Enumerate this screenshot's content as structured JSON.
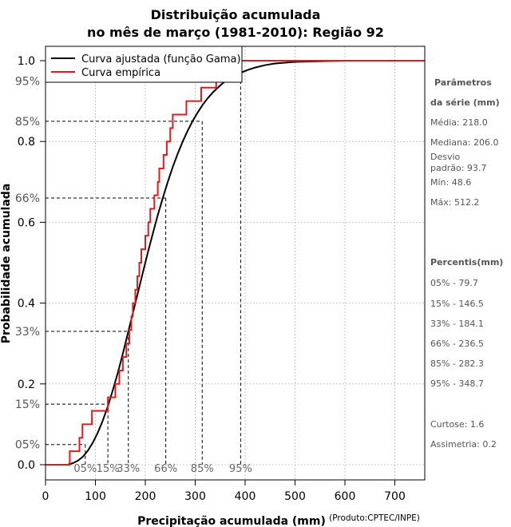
{
  "chart_data": {
    "type": "line",
    "title_line1": "Distribuição acumulada",
    "title_line2": "no mês de março (1981-2010): Região 92",
    "xlabel": "Precipitação acumulada (mm)",
    "xlabel_note": "(Produto:CPTEC/INPE)",
    "ylabel": "Probabilidade acumulada",
    "xlim": [
      0,
      760
    ],
    "ylim": [
      0,
      1.0
    ],
    "x_ticks": [
      0,
      100,
      200,
      300,
      400,
      500,
      600,
      700
    ],
    "x_tick_labels": [
      "0",
      "100",
      "200",
      "300",
      "400",
      "500",
      "600",
      "700"
    ],
    "y_ticks": [
      0.0,
      0.2,
      0.4,
      0.6,
      0.8,
      1.0
    ],
    "y_tick_labels": [
      "0.0",
      "0.2",
      "0.4",
      "0.6",
      "0.8",
      "1.0"
    ],
    "grid": true,
    "legend_position": "top-left",
    "legend": [
      {
        "label": "Curva ajustada (função Gama)",
        "color": "#000000"
      },
      {
        "label": "Curva empírica",
        "color": "#e31a1c"
      }
    ],
    "series": [
      {
        "name": "Curva ajustada (função Gama)",
        "color": "#000000",
        "x": [
          44,
          55,
          65,
          75,
          85,
          95,
          105,
          115,
          125,
          135,
          145,
          155,
          165,
          175,
          185,
          195,
          205,
          215,
          225,
          235,
          245,
          255,
          265,
          275,
          285,
          295,
          305,
          315,
          325,
          335,
          345,
          355,
          365,
          375,
          385,
          395,
          405,
          420,
          440,
          460,
          480,
          500,
          530,
          560,
          600,
          640,
          675
        ],
        "y": [
          0.0,
          0.004,
          0.01,
          0.02,
          0.035,
          0.055,
          0.08,
          0.11,
          0.145,
          0.185,
          0.228,
          0.275,
          0.325,
          0.375,
          0.425,
          0.475,
          0.525,
          0.572,
          0.618,
          0.66,
          0.7,
          0.737,
          0.77,
          0.8,
          0.827,
          0.851,
          0.872,
          0.891,
          0.907,
          0.921,
          0.933,
          0.944,
          0.953,
          0.96,
          0.967,
          0.972,
          0.977,
          0.983,
          0.989,
          0.993,
          0.995,
          0.997,
          0.998,
          0.999,
          1.0,
          1.0,
          1.0
        ]
      },
      {
        "name": "Curva empírica",
        "color": "#e31a1c",
        "step_x": [
          0,
          48.6,
          68,
          74,
          93,
          125,
          140,
          148,
          155,
          162,
          168,
          172,
          175,
          180,
          184.1,
          188,
          192,
          200,
          206,
          210,
          218,
          225,
          228,
          236.5,
          243,
          250,
          255,
          258,
          268,
          275,
          282.3,
          288,
          300,
          312,
          325,
          342,
          348.7,
          352,
          372,
          512.2,
          760
        ],
        "step_y": [
          0,
          0.0333,
          0.0667,
          0.1,
          0.1333,
          0.1667,
          0.2,
          0.2333,
          0.2667,
          0.3,
          0.3333,
          0.3667,
          0.4,
          0.4333,
          0.4667,
          0.5,
          0.5333,
          0.5667,
          0.6,
          0.6333,
          0.6667,
          0.7,
          0.7333,
          0.7667,
          0.8,
          0.8333,
          0.8667,
          0.8667,
          0.8667,
          0.8667,
          0.9,
          0.9,
          0.9,
          0.9333,
          0.9333,
          0.9667,
          0.9667,
          1.0,
          1.0,
          1.0,
          1.0
        ]
      }
    ],
    "percentile_markers": [
      {
        "label": "05%",
        "y_label": "05%",
        "prob": 0.05,
        "x": 79.7
      },
      {
        "label": "15%",
        "y_label": "15%",
        "prob": 0.15,
        "x": 125
      },
      {
        "label": "33%",
        "y_label": "33%",
        "prob": 0.33,
        "x": 166
      },
      {
        "label": "66%",
        "y_label": "66%",
        "prob": 0.66,
        "x": 241
      },
      {
        "label": "85%",
        "y_label": "85%",
        "prob": 0.85,
        "x": 314
      },
      {
        "label": "95%",
        "y_label": "95%",
        "prob": 0.95,
        "x": 391
      }
    ]
  },
  "side_panel": {
    "params_title_1": "Parâmetros",
    "params_title_2": "da série (mm)",
    "media": "Média: 218.0",
    "mediana": "Mediana: 206.0",
    "desvio_1": "Desvio",
    "desvio_2": "padrão: 93.7",
    "min": "Mín: 48.6",
    "max": "Máx: 512.2",
    "percentis_title": "Percentis(mm)",
    "percentis": [
      "05% - 79.7",
      "15% - 146.5",
      "33% - 184.1",
      "66% - 236.5",
      "85% - 282.3",
      "95% - 348.7"
    ],
    "curtose": "Curtose: 1.6",
    "assimetria": "Assimetria: 0.2"
  }
}
